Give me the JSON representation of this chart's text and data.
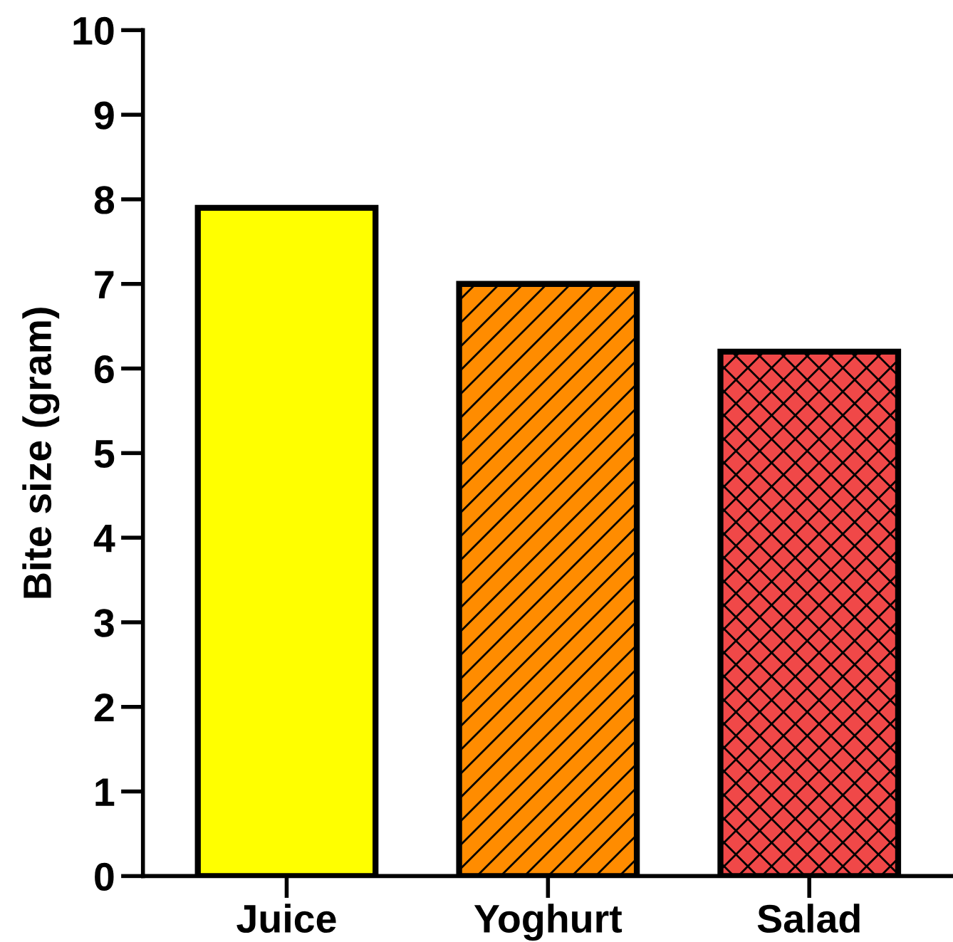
{
  "chart_data": {
    "type": "bar",
    "ylabel": "Bite size (gram)",
    "categories": [
      "Juice",
      "Yoghurt",
      "Salad"
    ],
    "values": [
      7.9,
      7.0,
      6.2
    ],
    "colors": [
      "#ffff00",
      "#ff8c00",
      "#f04848"
    ],
    "ylim": [
      0,
      10
    ],
    "yticks": [
      0,
      1,
      2,
      3,
      4,
      5,
      6,
      7,
      8,
      9,
      10
    ],
    "grid": false
  }
}
